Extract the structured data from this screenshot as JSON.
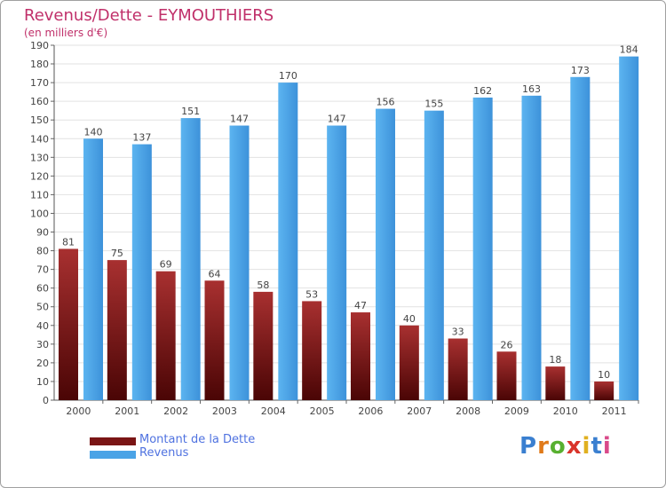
{
  "chart_data": {
    "type": "bar",
    "title": "Revenus/Dette - EYMOUTHIERS",
    "subtitle": "(en milliers d'€)",
    "categories": [
      "2000",
      "2001",
      "2002",
      "2003",
      "2004",
      "2005",
      "2006",
      "2007",
      "2008",
      "2009",
      "2010",
      "2011"
    ],
    "series": [
      {
        "name": "Montant de la Dette",
        "color": "#7a1515",
        "values": [
          81,
          75,
          69,
          64,
          58,
          53,
          47,
          40,
          33,
          26,
          18,
          10
        ]
      },
      {
        "name": "Revenus",
        "color": "#4aa3e6",
        "values": [
          140,
          137,
          151,
          147,
          170,
          147,
          156,
          155,
          162,
          163,
          173,
          184
        ]
      }
    ],
    "ylim": [
      0,
      190
    ],
    "ytick_step": 10,
    "grid": true,
    "legend_position": "bottom-left"
  },
  "logo": {
    "letters": [
      "P",
      "r",
      "o",
      "x",
      "i",
      "t",
      "i"
    ],
    "colors": [
      "#3a7fd0",
      "#e07a1a",
      "#58b030",
      "#d9342b",
      "#e0b020",
      "#3a7fd0",
      "#d94a8a"
    ]
  }
}
